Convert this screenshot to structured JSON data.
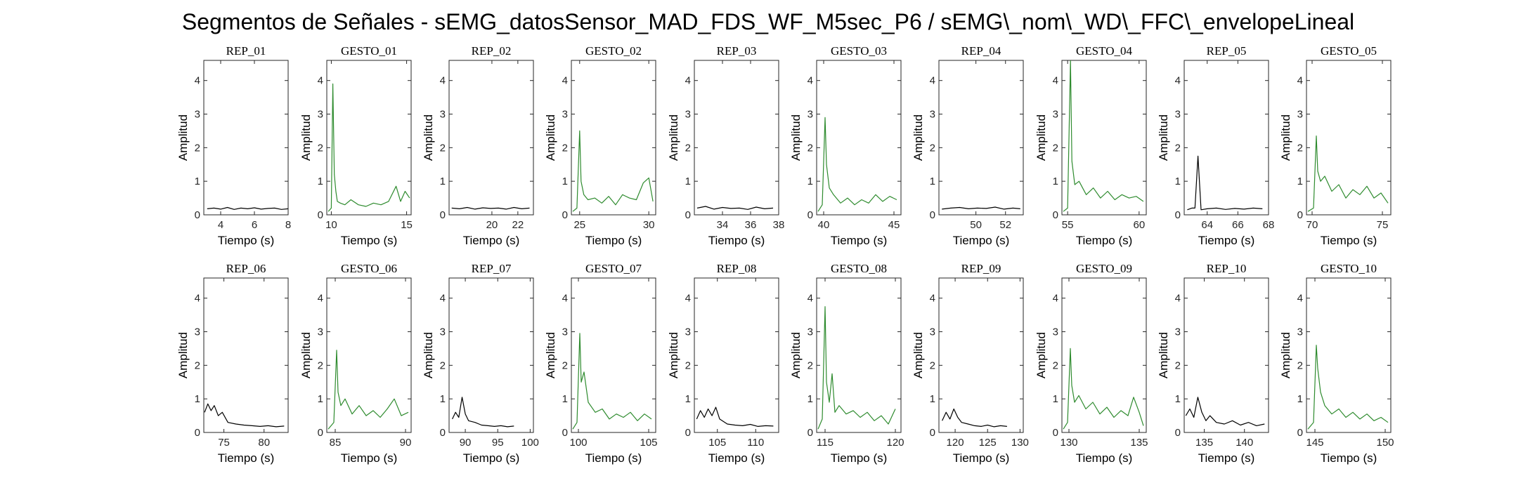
{
  "figure": {
    "title": "Segmentos de Señales - sEMG_datosSensor_MAD_FDS_WF_M5sec_P6 / sEMG\\_nom\\_WD\\_FFC\\_envelopeLineal"
  },
  "colors": {
    "rep": "#000000",
    "gesto": "#2e8b2e",
    "axis": "#262626"
  },
  "chart_data": [
    {
      "type": "line",
      "title": "REP_01",
      "xlabel": "Tiempo (s)",
      "ylabel": "Amplitud",
      "xlim": [
        3,
        8
      ],
      "ylim": [
        0,
        4.6
      ],
      "xticks": [
        4,
        6,
        8
      ],
      "yticks": [
        0,
        1,
        2,
        3,
        4
      ],
      "series_class": "rep",
      "x": [
        3.2,
        3.6,
        4.0,
        4.4,
        4.8,
        5.2,
        5.6,
        6.0,
        6.4,
        6.8,
        7.2,
        7.6,
        8.0
      ],
      "y": [
        0.18,
        0.2,
        0.17,
        0.22,
        0.16,
        0.2,
        0.18,
        0.21,
        0.17,
        0.19,
        0.2,
        0.16,
        0.18
      ]
    },
    {
      "type": "line",
      "title": "GESTO_01",
      "xlabel": "Tiempo (s)",
      "ylabel": "Amplitud",
      "xlim": [
        9.7,
        15.3
      ],
      "ylim": [
        0,
        4.6
      ],
      "xticks": [
        10,
        15
      ],
      "yticks": [
        0,
        1,
        2,
        3,
        4
      ],
      "series_class": "gesto",
      "x": [
        9.8,
        10.0,
        10.1,
        10.2,
        10.3,
        10.4,
        10.6,
        10.9,
        11.3,
        11.8,
        12.3,
        12.8,
        13.3,
        13.8,
        14.3,
        14.6,
        14.9,
        15.2
      ],
      "y": [
        0.1,
        0.2,
        3.9,
        1.2,
        0.7,
        0.4,
        0.35,
        0.3,
        0.45,
        0.3,
        0.25,
        0.35,
        0.3,
        0.4,
        0.85,
        0.4,
        0.7,
        0.5
      ]
    },
    {
      "type": "line",
      "title": "REP_02",
      "xlabel": "Tiempo (s)",
      "ylabel": "Amplitud",
      "xlim": [
        16.7,
        23.2
      ],
      "ylim": [
        0,
        4.6
      ],
      "xticks": [
        20,
        22
      ],
      "yticks": [
        0,
        1,
        2,
        3,
        4
      ],
      "series_class": "rep",
      "x": [
        16.9,
        17.5,
        18.1,
        18.7,
        19.3,
        19.9,
        20.5,
        21.1,
        21.7,
        22.3,
        22.9
      ],
      "y": [
        0.2,
        0.18,
        0.22,
        0.17,
        0.21,
        0.19,
        0.2,
        0.17,
        0.22,
        0.18,
        0.2
      ]
    },
    {
      "type": "line",
      "title": "GESTO_02",
      "xlabel": "Tiempo (s)",
      "ylabel": "Amplitud",
      "xlim": [
        24.4,
        30.5
      ],
      "ylim": [
        0,
        4.6
      ],
      "xticks": [
        25,
        30
      ],
      "yticks": [
        0,
        1,
        2,
        3,
        4
      ],
      "series_class": "gesto",
      "x": [
        24.5,
        24.8,
        25.0,
        25.1,
        25.3,
        25.6,
        26.1,
        26.6,
        27.1,
        27.6,
        28.1,
        28.6,
        29.1,
        29.6,
        30.0,
        30.3
      ],
      "y": [
        0.1,
        0.2,
        2.5,
        1.0,
        0.6,
        0.45,
        0.5,
        0.35,
        0.55,
        0.3,
        0.6,
        0.5,
        0.45,
        0.95,
        1.1,
        0.4
      ]
    },
    {
      "type": "line",
      "title": "REP_03",
      "xlabel": "Tiempo (s)",
      "ylabel": "Amplitud",
      "xlim": [
        32,
        38
      ],
      "ylim": [
        0,
        4.6
      ],
      "xticks": [
        34,
        36,
        38
      ],
      "yticks": [
        0,
        1,
        2,
        3,
        4
      ],
      "series_class": "rep",
      "x": [
        32.2,
        32.8,
        33.4,
        34.0,
        34.6,
        35.2,
        35.8,
        36.4,
        37.0,
        37.6
      ],
      "y": [
        0.2,
        0.25,
        0.17,
        0.22,
        0.19,
        0.2,
        0.16,
        0.23,
        0.18,
        0.2
      ]
    },
    {
      "type": "line",
      "title": "GESTO_03",
      "xlabel": "Tiempo (s)",
      "ylabel": "Amplitud",
      "xlim": [
        39.5,
        45.5
      ],
      "ylim": [
        0,
        4.6
      ],
      "xticks": [
        40,
        45
      ],
      "yticks": [
        0,
        1,
        2,
        3,
        4
      ],
      "series_class": "gesto",
      "x": [
        39.6,
        39.9,
        40.1,
        40.2,
        40.4,
        40.7,
        41.2,
        41.7,
        42.2,
        42.7,
        43.2,
        43.7,
        44.2,
        44.7,
        45.2
      ],
      "y": [
        0.1,
        0.3,
        2.9,
        1.5,
        0.8,
        0.6,
        0.35,
        0.5,
        0.3,
        0.45,
        0.35,
        0.6,
        0.4,
        0.55,
        0.45
      ]
    },
    {
      "type": "line",
      "title": "REP_04",
      "xlabel": "Tiempo (s)",
      "ylabel": "Amplitud",
      "xlim": [
        47.5,
        53.2
      ],
      "ylim": [
        0,
        4.6
      ],
      "xticks": [
        50,
        52
      ],
      "yticks": [
        0,
        1,
        2,
        3,
        4
      ],
      "series_class": "rep",
      "x": [
        47.7,
        48.3,
        48.9,
        49.5,
        50.1,
        50.7,
        51.3,
        51.9,
        52.5,
        53.0
      ],
      "y": [
        0.17,
        0.2,
        0.22,
        0.18,
        0.2,
        0.19,
        0.23,
        0.17,
        0.2,
        0.18
      ]
    },
    {
      "type": "line",
      "title": "GESTO_04",
      "xlabel": "Tiempo (s)",
      "ylabel": "Amplitud",
      "xlim": [
        54.6,
        60.5
      ],
      "ylim": [
        0,
        4.6
      ],
      "xticks": [
        55,
        60
      ],
      "yticks": [
        0,
        1,
        2,
        3,
        4
      ],
      "series_class": "gesto",
      "x": [
        54.7,
        55.0,
        55.2,
        55.3,
        55.5,
        55.8,
        56.3,
        56.8,
        57.3,
        57.8,
        58.3,
        58.8,
        59.3,
        59.8,
        60.3
      ],
      "y": [
        0.1,
        0.2,
        4.6,
        1.6,
        0.9,
        1.0,
        0.6,
        0.8,
        0.5,
        0.7,
        0.45,
        0.6,
        0.5,
        0.55,
        0.4
      ]
    },
    {
      "type": "line",
      "title": "REP_05",
      "xlabel": "Tiempo (s)",
      "ylabel": "Amplitud",
      "xlim": [
        62.5,
        68
      ],
      "ylim": [
        0,
        4.6
      ],
      "xticks": [
        64,
        66,
        68
      ],
      "yticks": [
        0,
        1,
        2,
        3,
        4
      ],
      "series_class": "rep",
      "x": [
        62.7,
        63.0,
        63.2,
        63.4,
        63.6,
        64.0,
        64.6,
        65.2,
        65.8,
        66.4,
        67.0,
        67.6
      ],
      "y": [
        0.15,
        0.2,
        0.2,
        1.75,
        0.15,
        0.18,
        0.2,
        0.16,
        0.19,
        0.17,
        0.2,
        0.18
      ]
    },
    {
      "type": "line",
      "title": "GESTO_05",
      "xlabel": "Tiempo (s)",
      "ylabel": "Amplitud",
      "xlim": [
        69.6,
        75.6
      ],
      "ylim": [
        0,
        4.6
      ],
      "xticks": [
        70,
        75
      ],
      "yticks": [
        0,
        1,
        2,
        3,
        4
      ],
      "series_class": "gesto",
      "x": [
        69.7,
        70.1,
        70.3,
        70.4,
        70.6,
        70.9,
        71.4,
        71.9,
        72.4,
        72.9,
        73.4,
        73.9,
        74.4,
        74.9,
        75.4
      ],
      "y": [
        0.1,
        0.2,
        2.35,
        1.3,
        1.0,
        1.15,
        0.7,
        0.9,
        0.5,
        0.75,
        0.6,
        0.85,
        0.5,
        0.65,
        0.35
      ]
    },
    {
      "type": "line",
      "title": "REP_06",
      "xlabel": "Tiempo (s)",
      "ylabel": "Amplitud",
      "xlim": [
        72.5,
        83
      ],
      "ylim": [
        0,
        4.6
      ],
      "xticks": [
        75,
        80
      ],
      "yticks": [
        0,
        1,
        2,
        3,
        4
      ],
      "series_class": "rep",
      "x": [
        72.6,
        73.0,
        73.4,
        73.8,
        74.3,
        74.8,
        75.5,
        76.5,
        77.5,
        78.5,
        79.5,
        80.5,
        81.5,
        82.5
      ],
      "y": [
        0.6,
        0.85,
        0.65,
        0.8,
        0.5,
        0.6,
        0.3,
        0.25,
        0.22,
        0.2,
        0.18,
        0.2,
        0.17,
        0.19
      ]
    },
    {
      "type": "line",
      "title": "GESTO_06",
      "xlabel": "Tiempo (s)",
      "ylabel": "Amplitud",
      "xlim": [
        84.4,
        90.4
      ],
      "ylim": [
        0,
        4.6
      ],
      "xticks": [
        85,
        90
      ],
      "yticks": [
        0,
        1,
        2,
        3,
        4
      ],
      "series_class": "gesto",
      "x": [
        84.5,
        84.9,
        85.1,
        85.2,
        85.4,
        85.7,
        86.2,
        86.7,
        87.2,
        87.7,
        88.2,
        88.7,
        89.2,
        89.7,
        90.2
      ],
      "y": [
        0.1,
        0.3,
        2.45,
        1.2,
        0.8,
        1.0,
        0.55,
        0.8,
        0.5,
        0.65,
        0.45,
        0.7,
        1.0,
        0.5,
        0.6
      ]
    },
    {
      "type": "line",
      "title": "REP_07",
      "xlabel": "Tiempo (s)",
      "ylabel": "Amplitud",
      "xlim": [
        87.5,
        100.5
      ],
      "ylim": [
        0,
        4.6
      ],
      "xticks": [
        90,
        95,
        100
      ],
      "yticks": [
        0,
        1,
        2,
        3,
        4
      ],
      "series_class": "rep",
      "x": [
        88.0,
        88.5,
        89.0,
        89.5,
        90.0,
        90.5,
        91.5,
        92.5,
        93.5,
        94.5,
        95.5,
        96.5,
        97.5
      ],
      "y": [
        0.4,
        0.6,
        0.45,
        1.05,
        0.55,
        0.35,
        0.3,
        0.22,
        0.2,
        0.18,
        0.2,
        0.17,
        0.19
      ]
    },
    {
      "type": "line",
      "title": "GESTO_07",
      "xlabel": "Tiempo (s)",
      "ylabel": "Amplitud",
      "xlim": [
        99.5,
        105.5
      ],
      "ylim": [
        0,
        4.6
      ],
      "xticks": [
        100,
        105
      ],
      "yticks": [
        0,
        1,
        2,
        3,
        4
      ],
      "series_class": "gesto",
      "x": [
        99.6,
        99.9,
        100.1,
        100.2,
        100.4,
        100.7,
        101.2,
        101.7,
        102.2,
        102.7,
        103.2,
        103.7,
        104.2,
        104.7,
        105.2
      ],
      "y": [
        0.1,
        0.3,
        2.95,
        1.5,
        1.8,
        0.9,
        0.6,
        0.7,
        0.4,
        0.55,
        0.45,
        0.6,
        0.35,
        0.55,
        0.4
      ]
    },
    {
      "type": "line",
      "title": "REP_08",
      "xlabel": "Tiempo (s)",
      "ylabel": "Amplitud",
      "xlim": [
        102,
        113
      ],
      "ylim": [
        0,
        4.6
      ],
      "xticks": [
        105,
        110
      ],
      "yticks": [
        0,
        1,
        2,
        3,
        4
      ],
      "series_class": "rep",
      "x": [
        102.3,
        102.8,
        103.3,
        103.8,
        104.3,
        104.8,
        105.3,
        106.3,
        107.3,
        108.3,
        109.3,
        110.3,
        111.3,
        112.3
      ],
      "y": [
        0.4,
        0.65,
        0.45,
        0.7,
        0.5,
        0.75,
        0.4,
        0.25,
        0.22,
        0.2,
        0.24,
        0.18,
        0.2,
        0.19
      ]
    },
    {
      "type": "line",
      "title": "GESTO_08",
      "xlabel": "Tiempo (s)",
      "ylabel": "Amplitud",
      "xlim": [
        114.4,
        120.4
      ],
      "ylim": [
        0,
        4.6
      ],
      "xticks": [
        115,
        120
      ],
      "yticks": [
        0,
        1,
        2,
        3,
        4
      ],
      "series_class": "gesto",
      "x": [
        114.5,
        114.8,
        115.0,
        115.1,
        115.3,
        115.5,
        115.7,
        116.0,
        116.5,
        117.0,
        117.5,
        118.0,
        118.5,
        119.0,
        119.5,
        120.0
      ],
      "y": [
        0.1,
        0.4,
        3.75,
        1.5,
        0.9,
        1.75,
        0.6,
        0.8,
        0.55,
        0.65,
        0.45,
        0.6,
        0.35,
        0.5,
        0.25,
        0.7
      ]
    },
    {
      "type": "line",
      "title": "REP_09",
      "xlabel": "Tiempo (s)",
      "ylabel": "Amplitud",
      "xlim": [
        117.5,
        130.5
      ],
      "ylim": [
        0,
        4.6
      ],
      "xticks": [
        120,
        125,
        130
      ],
      "yticks": [
        0,
        1,
        2,
        3,
        4
      ],
      "series_class": "rep",
      "x": [
        118.0,
        118.6,
        119.2,
        119.8,
        120.4,
        121.0,
        122.0,
        123.0,
        124.0,
        125.0,
        126.0,
        127.0,
        128.0
      ],
      "y": [
        0.35,
        0.6,
        0.4,
        0.7,
        0.45,
        0.3,
        0.25,
        0.2,
        0.18,
        0.22,
        0.17,
        0.2,
        0.18
      ]
    },
    {
      "type": "line",
      "title": "GESTO_09",
      "xlabel": "Tiempo (s)",
      "ylabel": "Amplitud",
      "xlim": [
        129.5,
        135.5
      ],
      "ylim": [
        0,
        4.6
      ],
      "xticks": [
        130,
        135
      ],
      "yticks": [
        0,
        1,
        2,
        3,
        4
      ],
      "series_class": "gesto",
      "x": [
        129.6,
        129.9,
        130.1,
        130.2,
        130.4,
        130.7,
        131.2,
        131.7,
        132.2,
        132.7,
        133.2,
        133.7,
        134.2,
        134.6,
        135.0,
        135.3
      ],
      "y": [
        0.1,
        0.3,
        2.5,
        1.4,
        0.9,
        1.1,
        0.7,
        0.9,
        0.55,
        0.75,
        0.45,
        0.65,
        0.5,
        1.05,
        0.6,
        0.2
      ]
    },
    {
      "type": "line",
      "title": "REP_10",
      "xlabel": "Tiempo (s)",
      "ylabel": "Amplitud",
      "xlim": [
        132.5,
        143
      ],
      "ylim": [
        0,
        4.6
      ],
      "xticks": [
        135,
        140
      ],
      "yticks": [
        0,
        1,
        2,
        3,
        4
      ],
      "series_class": "rep",
      "x": [
        132.7,
        133.2,
        133.7,
        134.2,
        134.7,
        135.2,
        135.7,
        136.5,
        137.5,
        138.5,
        139.5,
        140.5,
        141.5,
        142.5
      ],
      "y": [
        0.5,
        0.7,
        0.45,
        1.05,
        0.6,
        0.35,
        0.5,
        0.3,
        0.25,
        0.35,
        0.22,
        0.3,
        0.2,
        0.25
      ]
    },
    {
      "type": "line",
      "title": "GESTO_10",
      "xlabel": "Tiempo (s)",
      "ylabel": "Amplitud",
      "xlim": [
        144.4,
        150.4
      ],
      "ylim": [
        0,
        4.6
      ],
      "xticks": [
        145,
        150
      ],
      "yticks": [
        0,
        1,
        2,
        3,
        4
      ],
      "series_class": "gesto",
      "x": [
        144.5,
        144.9,
        145.1,
        145.2,
        145.4,
        145.7,
        146.2,
        146.7,
        147.2,
        147.7,
        148.2,
        148.7,
        149.2,
        149.7,
        150.2
      ],
      "y": [
        0.1,
        0.3,
        2.6,
        1.9,
        1.2,
        0.8,
        0.55,
        0.7,
        0.45,
        0.6,
        0.4,
        0.55,
        0.35,
        0.45,
        0.3
      ]
    }
  ]
}
